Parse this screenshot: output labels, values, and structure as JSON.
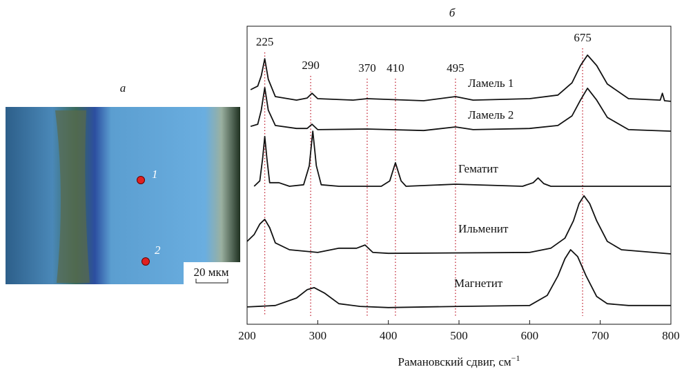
{
  "panel_a": {
    "label": "а",
    "points": [
      "1",
      "2"
    ],
    "scale_bar": "20 мкм"
  },
  "chart_data": {
    "type": "line",
    "title": "б",
    "xlabel": "Рамановский сдвиг, см",
    "xlabel_sup": "−1",
    "xlim": [
      200,
      800
    ],
    "xticks": [
      200,
      300,
      400,
      500,
      600,
      700,
      800
    ],
    "ylim": [
      0,
      100
    ],
    "reference_lines": [
      225,
      290,
      370,
      410,
      495,
      675
    ],
    "reference_color": "#c02030",
    "series": [
      {
        "name": "Ламель 1",
        "color": "#111111",
        "x": [
          205,
          215,
          220,
          225,
          230,
          240,
          270,
          285,
          292,
          300,
          350,
          370,
          450,
          495,
          520,
          600,
          640,
          660,
          672,
          682,
          695,
          710,
          740,
          785,
          788,
          791,
          800
        ],
        "values": [
          78.7,
          79.9,
          83.3,
          89.1,
          82.2,
          76.4,
          75.2,
          75.9,
          77.5,
          75.7,
          75.2,
          75.7,
          75.0,
          76.4,
          75.2,
          75.7,
          76.9,
          81.0,
          86.8,
          90.3,
          86.8,
          80.6,
          75.7,
          75.2,
          77.5,
          75.0,
          74.8
        ]
      },
      {
        "name": "Ламель 2",
        "color": "#111111",
        "x": [
          205,
          215,
          220,
          225,
          230,
          240,
          270,
          285,
          292,
          300,
          370,
          450,
          495,
          520,
          600,
          640,
          660,
          672,
          682,
          695,
          710,
          740,
          800
        ],
        "values": [
          66.4,
          67.1,
          71.8,
          79.4,
          71.8,
          66.7,
          65.7,
          65.7,
          67.1,
          65.3,
          65.5,
          65.0,
          66.2,
          65.3,
          65.7,
          66.7,
          69.9,
          75.2,
          79.2,
          75.2,
          69.4,
          65.3,
          64.8
        ]
      },
      {
        "name": "Гематит",
        "color": "#111111",
        "x": [
          210,
          218,
          222,
          225,
          228,
          232,
          245,
          260,
          280,
          288,
          293,
          298,
          305,
          330,
          390,
          402,
          410,
          418,
          425,
          495,
          590,
          605,
          612,
          620,
          630,
          800
        ],
        "values": [
          46.3,
          48.1,
          55.6,
          63.0,
          55.6,
          47.5,
          47.5,
          46.3,
          46.8,
          53.2,
          64.8,
          53.2,
          46.8,
          46.3,
          46.3,
          48.1,
          54.2,
          48.1,
          46.3,
          47.0,
          46.3,
          47.5,
          49.1,
          47.2,
          46.3,
          46.3
        ]
      },
      {
        "name": "Ильменит",
        "color": "#111111",
        "x": [
          200,
          210,
          218,
          225,
          232,
          240,
          260,
          300,
          330,
          355,
          367,
          378,
          400,
          600,
          630,
          650,
          662,
          670,
          677,
          685,
          695,
          710,
          730,
          800
        ],
        "values": [
          27.8,
          30.1,
          33.6,
          35.2,
          32.4,
          27.3,
          25.0,
          24.1,
          25.5,
          25.5,
          26.6,
          24.1,
          23.8,
          24.1,
          25.5,
          28.9,
          34.7,
          40.5,
          43.1,
          40.5,
          34.7,
          27.8,
          25.0,
          23.6
        ]
      },
      {
        "name": "Магнетит",
        "color": "#111111",
        "x": [
          200,
          240,
          270,
          285,
          295,
          310,
          330,
          360,
          400,
          500,
          600,
          625,
          640,
          650,
          658,
          668,
          680,
          695,
          710,
          740,
          800
        ],
        "values": [
          5.8,
          6.3,
          8.8,
          11.6,
          12.3,
          10.4,
          6.9,
          6.0,
          5.6,
          6.0,
          6.3,
          9.7,
          16.2,
          22.0,
          25.0,
          22.7,
          16.2,
          9.3,
          6.9,
          6.3,
          6.3
        ]
      }
    ]
  }
}
